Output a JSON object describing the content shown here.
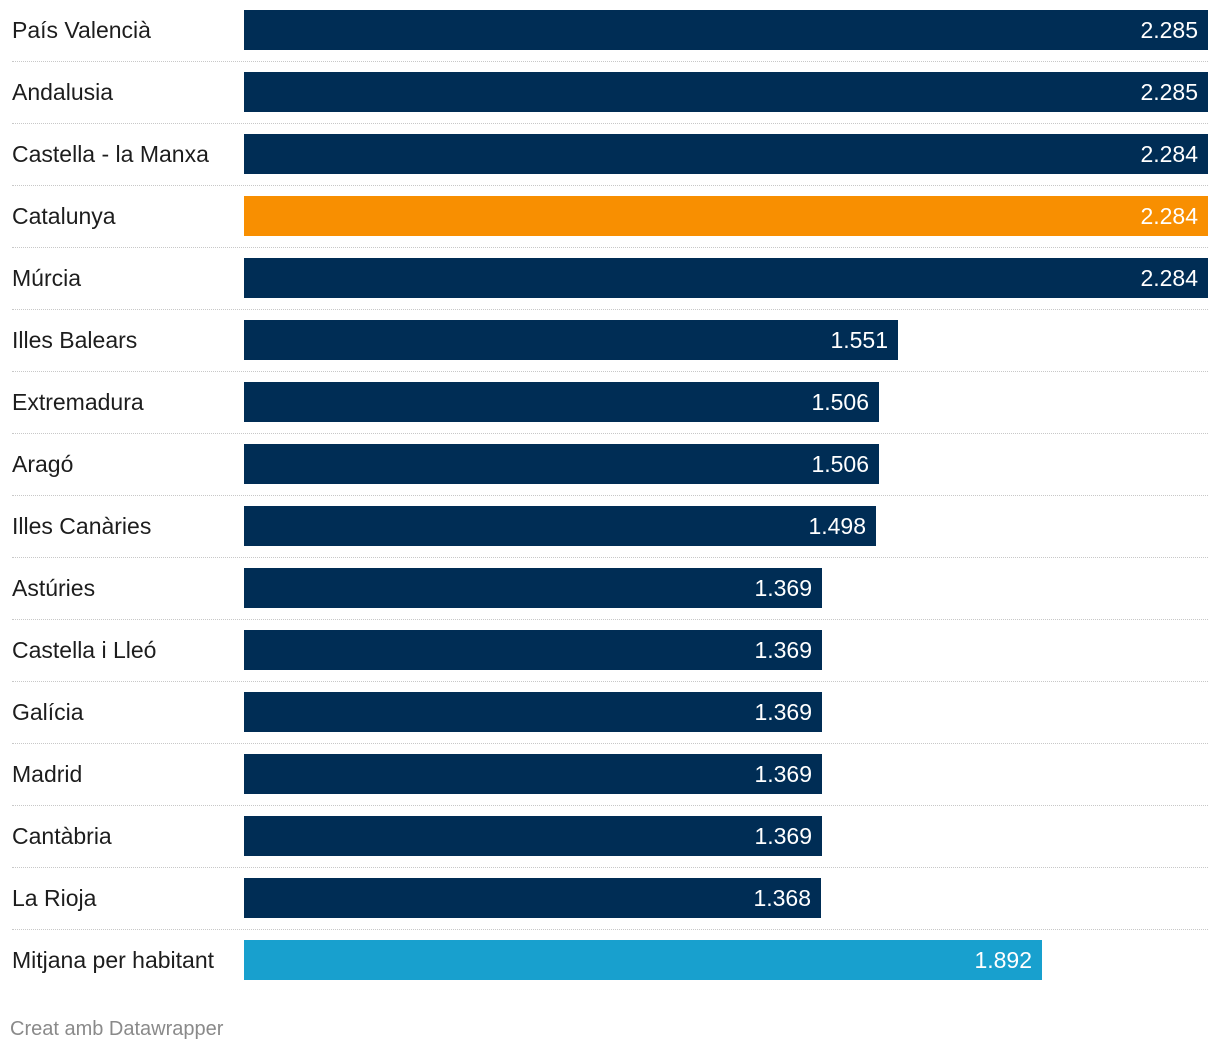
{
  "chart_data": {
    "type": "bar",
    "orientation": "horizontal",
    "categories": [
      "País Valencià",
      "Andalusia",
      "Castella - la Manxa",
      "Catalunya",
      "Múrcia",
      "Illes Balears",
      "Extremadura",
      "Aragó",
      "Illes Canàries",
      "Astúries",
      "Castella i Lleó",
      "Galícia",
      "Madrid",
      "Cantàbria",
      "La Rioja",
      "Mitjana per habitant"
    ],
    "values": [
      2285,
      2285,
      2284,
      2284,
      2284,
      1551,
      1506,
      1506,
      1498,
      1369,
      1369,
      1369,
      1369,
      1369,
      1368,
      1892
    ],
    "value_labels": [
      "2.285",
      "2.285",
      "2.284",
      "2.284",
      "2.284",
      "1.551",
      "1.506",
      "1.506",
      "1.498",
      "1.369",
      "1.369",
      "1.369",
      "1.369",
      "1.369",
      "1.368",
      "1.892"
    ],
    "xlim": [
      0,
      2285
    ],
    "colors": {
      "default": "#002d55",
      "highlight": "#f88f01",
      "average": "#18a0ce"
    },
    "highlight_category": "Catalunya",
    "average_category": "Mitjana per habitant",
    "grid": false,
    "legend": "none"
  },
  "footer": {
    "credit": "Creat amb Datawrapper"
  }
}
